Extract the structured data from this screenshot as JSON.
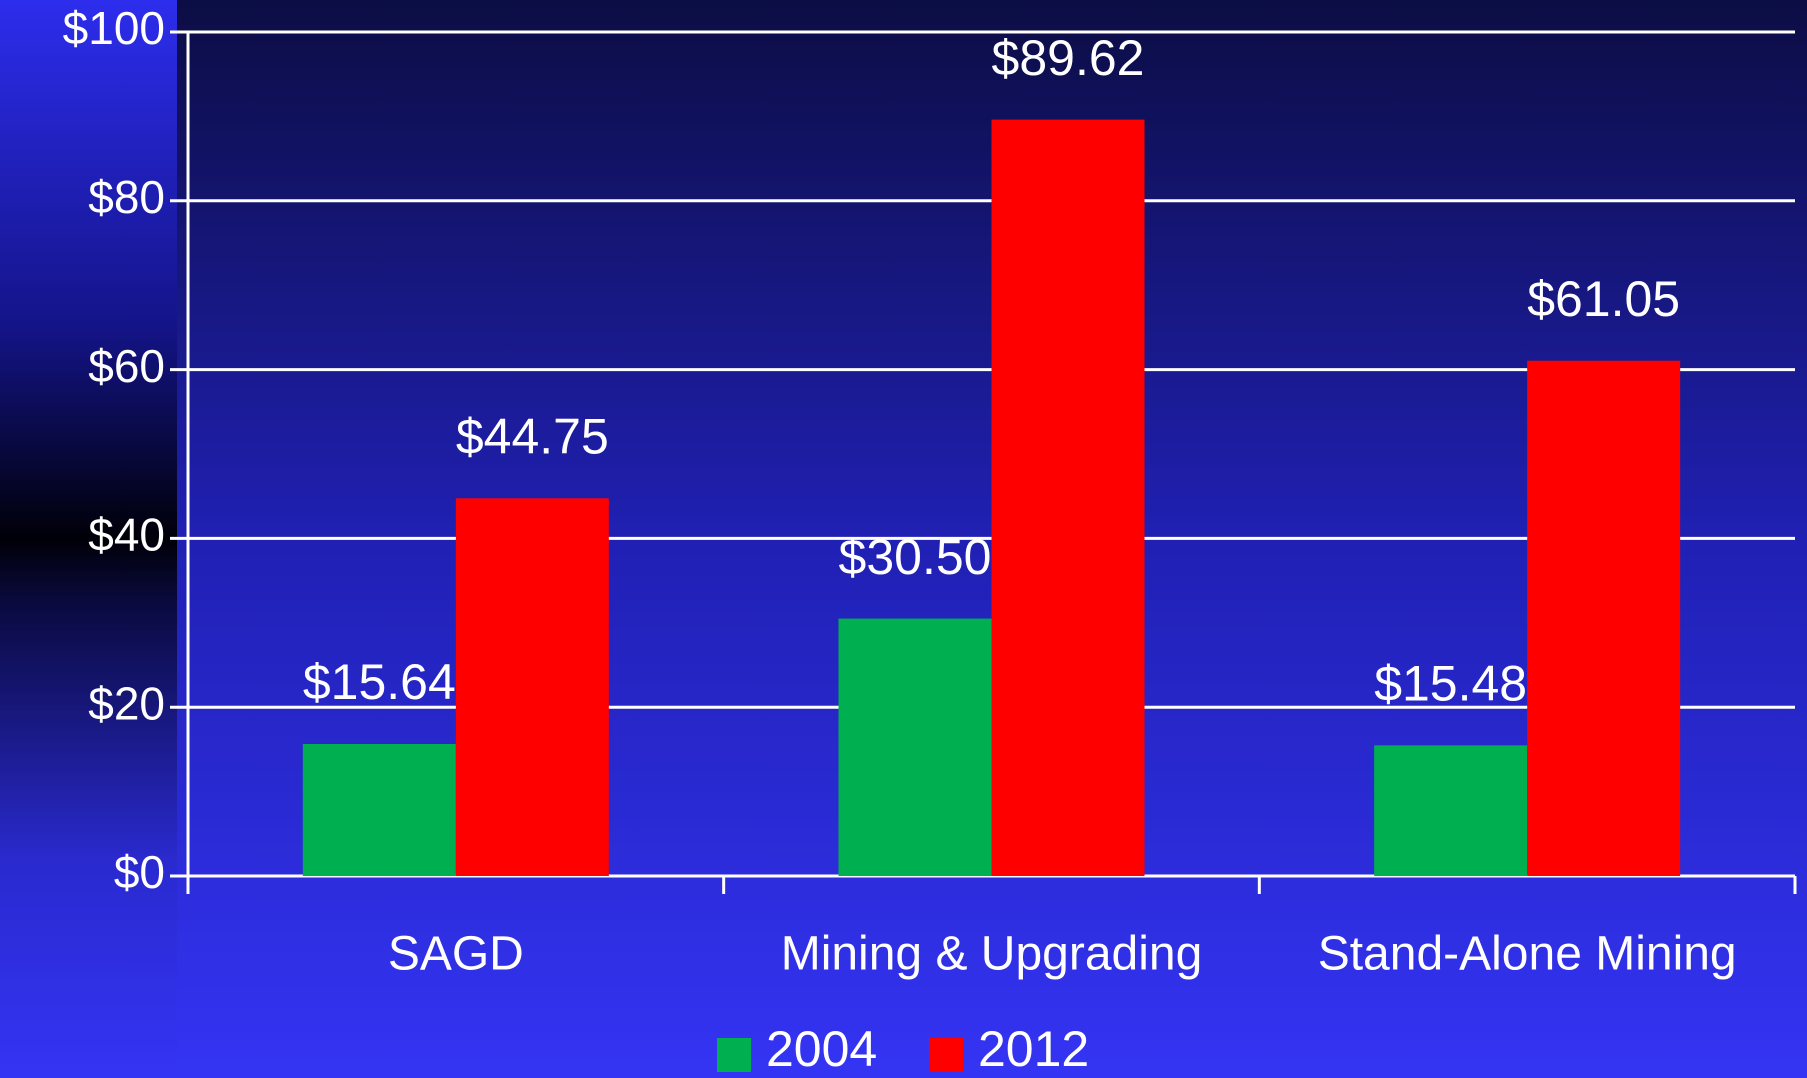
{
  "chart_data": {
    "type": "bar",
    "categories": [
      "SAGD",
      "Mining & Upgrading",
      "Stand-Alone Mining"
    ],
    "series": [
      {
        "name": "2004",
        "color": "#00b050",
        "values": [
          15.64,
          30.5,
          15.48
        ],
        "value_labels": [
          "$15.64",
          "$30.50",
          "$15.48"
        ]
      },
      {
        "name": "2012",
        "color": "#ff0000",
        "values": [
          44.75,
          89.62,
          61.05
        ],
        "value_labels": [
          "$44.75",
          "$89.62",
          "$61.05"
        ]
      }
    ],
    "ylim": [
      0,
      100
    ],
    "yticks": [
      {
        "value": 0,
        "label": "$0"
      },
      {
        "value": 20,
        "label": "$20"
      },
      {
        "value": 40,
        "label": "$40"
      },
      {
        "value": 60,
        "label": "$60"
      },
      {
        "value": 80,
        "label": "$80"
      },
      {
        "value": 100,
        "label": "$100"
      }
    ],
    "grid": true,
    "legend": "bottom"
  }
}
